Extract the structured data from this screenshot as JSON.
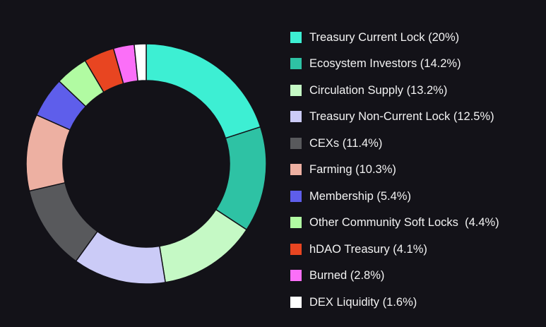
{
  "chart_data": {
    "type": "pie",
    "donut": true,
    "legend_position": "right",
    "slices": [
      {
        "label": "Treasury Current Lock (20%)",
        "value": 20,
        "color": "#3DEFD3"
      },
      {
        "label": "Ecosystem Investors (14.2%)",
        "value": 14.2,
        "color": "#2EC2A4"
      },
      {
        "label": "Circulation Supply (13.2%)",
        "value": 13.2,
        "color": "#C5F9C5"
      },
      {
        "label": "Treasury Non-Current Lock (12.5%)",
        "value": 12.5,
        "color": "#CBCBF7"
      },
      {
        "label": "CEXs (11.4%)",
        "value": 11.4,
        "color": "#58595C"
      },
      {
        "label": "Farming (10.3%)",
        "value": 10.3,
        "color": "#EDB0A2"
      },
      {
        "label": "Membership (5.4%)",
        "value": 5.4,
        "color": "#5E5EEB"
      },
      {
        "label": "Other Community Soft Locks  (4.4%)",
        "value": 4.4,
        "color": "#B1FBA2"
      },
      {
        "label": "hDAO Treasury (4.1%)",
        "value": 4.1,
        "color": "#E84521"
      },
      {
        "label": "Burned (2.8%)",
        "value": 2.8,
        "color": "#FB6FF8"
      },
      {
        "label": "DEX Liquidity (1.6%)",
        "value": 1.6,
        "color": "#FFFFFF"
      }
    ]
  }
}
